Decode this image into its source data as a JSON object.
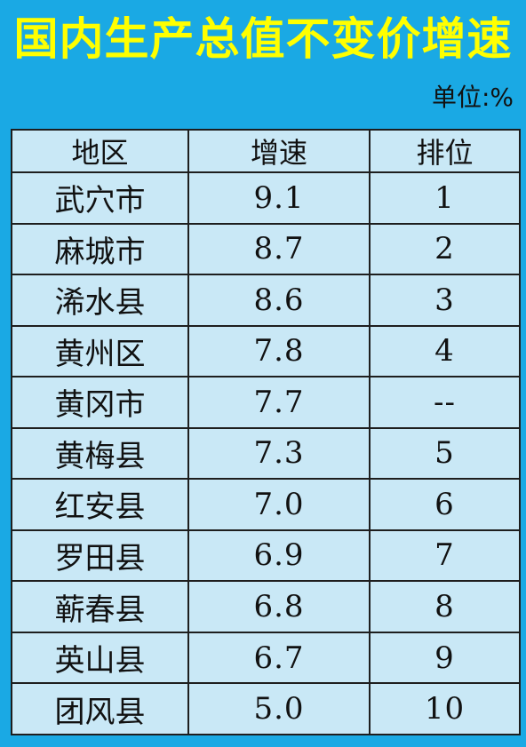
{
  "title": "国内生产总值不变价增速",
  "unit": "单位:%",
  "table": {
    "headers": [
      "地区",
      "增速",
      "排位"
    ],
    "rows": [
      {
        "region": "武穴市",
        "growth": "9.1",
        "rank": "1"
      },
      {
        "region": "麻城市",
        "growth": "8.7",
        "rank": "2"
      },
      {
        "region": "浠水县",
        "growth": "8.6",
        "rank": "3"
      },
      {
        "region": "黄州区",
        "growth": "7.8",
        "rank": "4"
      },
      {
        "region": "黄冈市",
        "growth": "7.7",
        "rank": "--"
      },
      {
        "region": "黄梅县",
        "growth": "7.3",
        "rank": "5"
      },
      {
        "region": "红安县",
        "growth": "7.0",
        "rank": "6"
      },
      {
        "region": "罗田县",
        "growth": "6.9",
        "rank": "7"
      },
      {
        "region": "蕲春县",
        "growth": "6.8",
        "rank": "8"
      },
      {
        "region": "英山县",
        "growth": "6.7",
        "rank": "9"
      },
      {
        "region": "团风县",
        "growth": "5.0",
        "rank": "10"
      }
    ]
  }
}
